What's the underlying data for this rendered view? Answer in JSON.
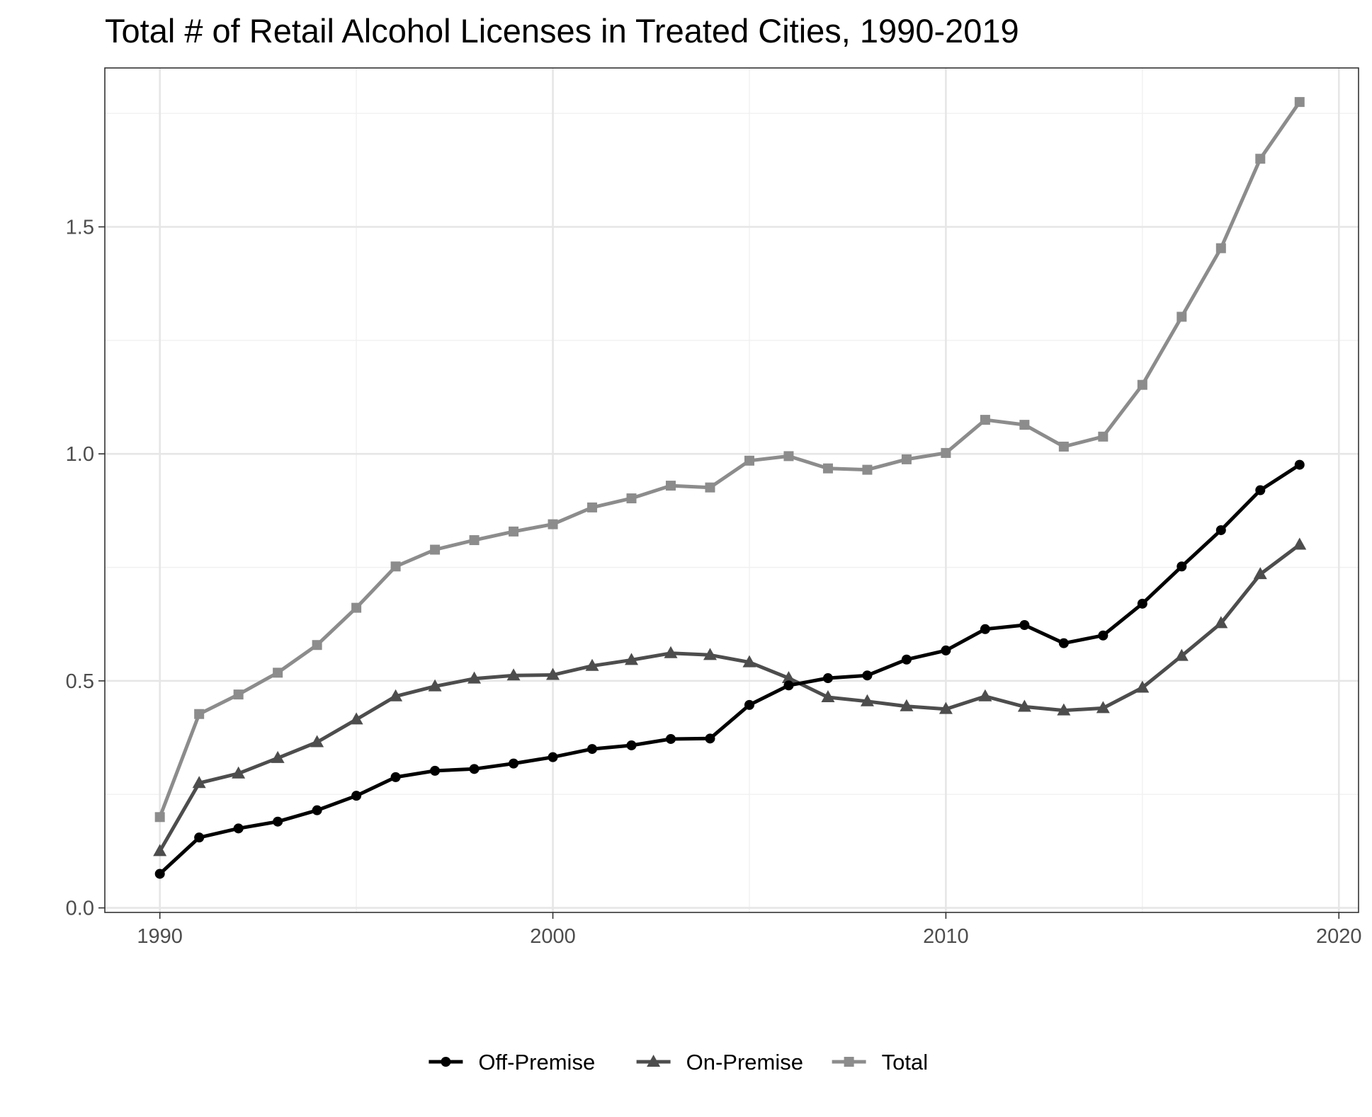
{
  "chart_data": {
    "type": "line",
    "title": "Total # of Retail Alcohol Licenses in Treated Cities, 1990-2019",
    "xlabel": "",
    "ylabel": "",
    "xlim": [
      1988.6,
      2020.5
    ],
    "ylim": [
      -0.01,
      1.85
    ],
    "x_ticks": [
      1990,
      2000,
      2010,
      2020
    ],
    "x_tick_labels": [
      "1990",
      "2000",
      "2010",
      "2020"
    ],
    "y_ticks": [
      0.0,
      0.5,
      1.0,
      1.5
    ],
    "y_tick_labels": [
      "0.0",
      "0.5",
      "1.0",
      "1.5"
    ],
    "grid": true,
    "legend_position": "bottom",
    "x": [
      1990,
      1991,
      1992,
      1993,
      1994,
      1995,
      1996,
      1997,
      1998,
      1999,
      2000,
      2001,
      2002,
      2003,
      2004,
      2005,
      2006,
      2007,
      2008,
      2009,
      2010,
      2011,
      2012,
      2013,
      2014,
      2015,
      2016,
      2017,
      2018,
      2019
    ],
    "series": [
      {
        "name": "Off-Premise",
        "color": "#000000",
        "marker": "circle",
        "values": [
          0.075,
          0.155,
          0.175,
          0.19,
          0.215,
          0.247,
          0.288,
          0.302,
          0.306,
          0.318,
          0.332,
          0.35,
          0.358,
          0.372,
          0.373,
          0.447,
          0.49,
          0.506,
          0.512,
          0.547,
          0.567,
          0.614,
          0.623,
          0.583,
          0.6,
          0.67,
          0.752,
          0.832,
          0.92,
          0.976
        ]
      },
      {
        "name": "On-Premise",
        "color": "#4d4d4d",
        "marker": "triangle",
        "values": [
          0.125,
          0.275,
          0.296,
          0.33,
          0.365,
          0.415,
          0.466,
          0.488,
          0.505,
          0.512,
          0.513,
          0.533,
          0.546,
          0.561,
          0.557,
          0.541,
          0.506,
          0.464,
          0.455,
          0.444,
          0.438,
          0.466,
          0.443,
          0.435,
          0.44,
          0.485,
          0.555,
          0.627,
          0.735,
          0.8
        ]
      },
      {
        "name": "Total",
        "color": "#8c8c8c",
        "marker": "square",
        "values": [
          0.2,
          0.427,
          0.47,
          0.518,
          0.579,
          0.661,
          0.752,
          0.789,
          0.81,
          0.829,
          0.845,
          0.882,
          0.902,
          0.93,
          0.926,
          0.985,
          0.995,
          0.968,
          0.965,
          0.988,
          1.002,
          1.075,
          1.064,
          1.016,
          1.038,
          1.152,
          1.302,
          1.453,
          1.65,
          1.775
        ]
      }
    ]
  }
}
